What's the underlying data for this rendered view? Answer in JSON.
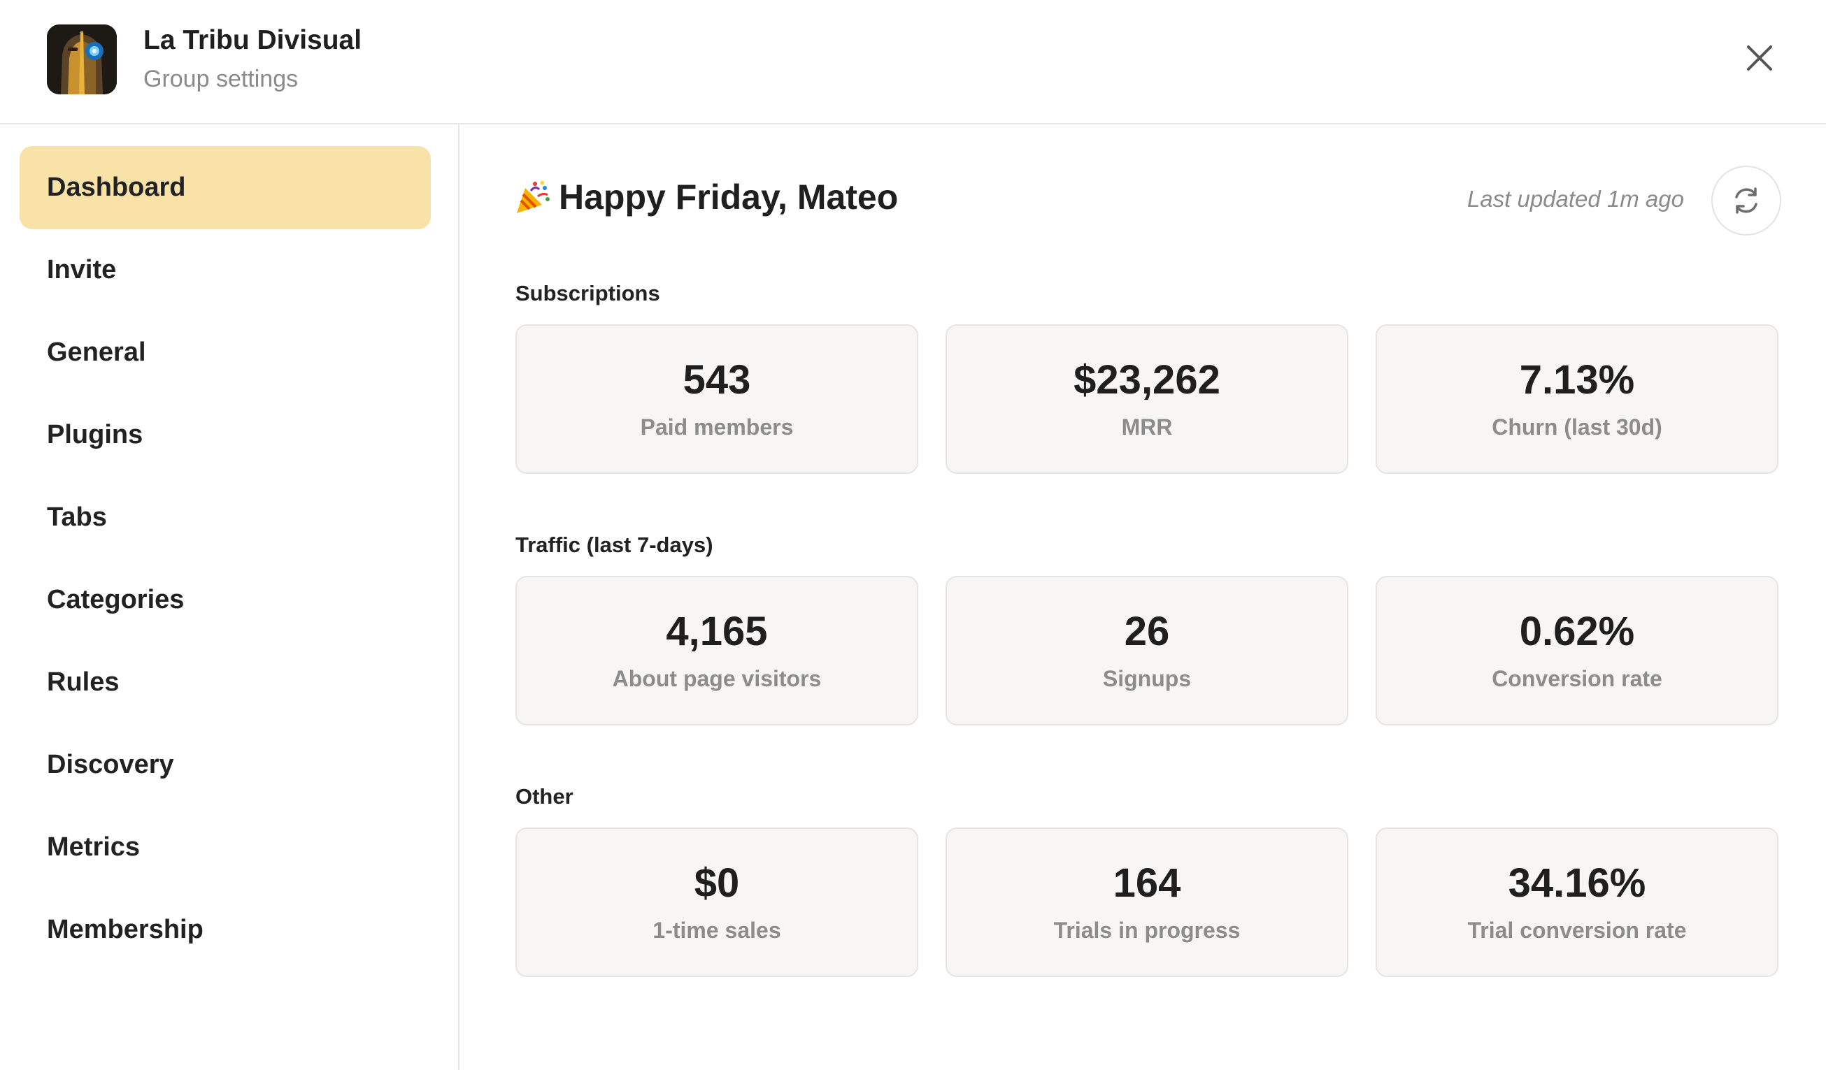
{
  "header": {
    "group_name": "La Tribu Divisual",
    "subtitle": "Group settings",
    "avatar_icon": "group-avatar-icon",
    "close_icon": "close-icon"
  },
  "sidebar": {
    "items": [
      {
        "label": "Dashboard",
        "active": true
      },
      {
        "label": "Invite"
      },
      {
        "label": "General"
      },
      {
        "label": "Plugins"
      },
      {
        "label": "Tabs"
      },
      {
        "label": "Categories"
      },
      {
        "label": "Rules"
      },
      {
        "label": "Discovery"
      },
      {
        "label": "Metrics"
      },
      {
        "label": "Membership"
      }
    ]
  },
  "main": {
    "greeting": "Happy Friday, Mateo",
    "greeting_icon": "party-popper-icon",
    "last_updated": "Last updated 1m ago",
    "refresh_icon": "refresh-icon",
    "sections": [
      {
        "title": "Subscriptions",
        "cards": [
          {
            "value": "543",
            "label": "Paid members"
          },
          {
            "value": "$23,262",
            "label": "MRR"
          },
          {
            "value": "7.13%",
            "label": "Churn (last 30d)"
          }
        ]
      },
      {
        "title": "Traffic (last 7-days)",
        "cards": [
          {
            "value": "4,165",
            "label": "About page visitors"
          },
          {
            "value": "26",
            "label": "Signups"
          },
          {
            "value": "0.62%",
            "label": "Conversion rate"
          }
        ]
      },
      {
        "title": "Other",
        "cards": [
          {
            "value": "$0",
            "label": "1-time sales"
          },
          {
            "value": "164",
            "label": "Trials in progress"
          },
          {
            "value": "34.16%",
            "label": "Trial conversion rate"
          }
        ]
      }
    ]
  },
  "colors": {
    "active_nav": "#f9e2a8",
    "card_bg": "#f7f6f4",
    "muted_text": "#8a8a8a"
  }
}
